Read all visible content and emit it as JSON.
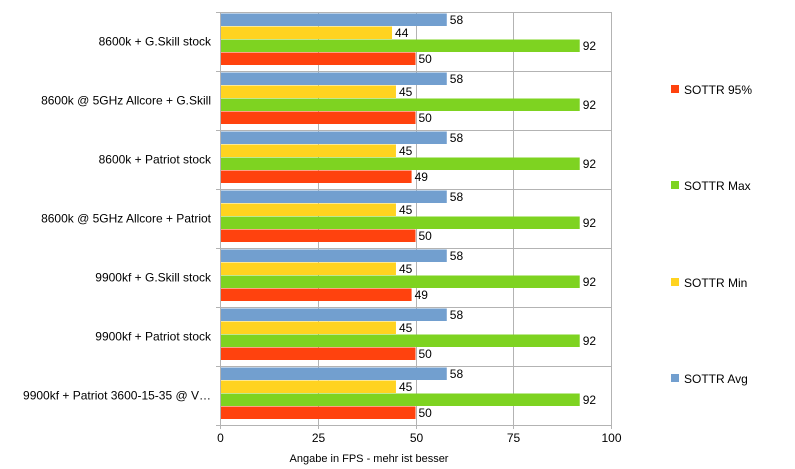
{
  "chart_data": {
    "type": "bar",
    "orientation": "horizontal",
    "title": "",
    "xlabel": "Angabe in FPS - mehr ist besser",
    "ylabel": "",
    "xlim": [
      0,
      100
    ],
    "xticks": [
      0,
      25,
      50,
      75,
      100
    ],
    "grid": true,
    "legend_position": "right",
    "categories": [
      "8600k + G.Skill stock",
      "8600k @ 5GHz Allcore + G.Skill",
      "8600k + Patriot stock",
      "8600k @ 5GHz Allcore + Patriot",
      "9900kf + G.Skill stock",
      "9900kf + Patriot stock",
      "9900kf + Patriot 3600-15-35 @ V…"
    ],
    "series": [
      {
        "name": "SOTTR Avg",
        "color": "#729fcf",
        "values": [
          58,
          58,
          58,
          58,
          58,
          58,
          58
        ]
      },
      {
        "name": "SOTTR Min",
        "color": "#ffd320",
        "values": [
          44,
          45,
          45,
          45,
          45,
          45,
          45
        ]
      },
      {
        "name": "SOTTR Max",
        "color": "#7ed321",
        "values": [
          92,
          92,
          92,
          92,
          92,
          92,
          92
        ]
      },
      {
        "name": "SOTTR 95%",
        "color": "#ff420e",
        "values": [
          50,
          50,
          49,
          50,
          49,
          50,
          50
        ]
      }
    ],
    "legend_order": [
      "SOTTR 95%",
      "SOTTR Max",
      "SOTTR Min",
      "SOTTR Avg"
    ]
  }
}
